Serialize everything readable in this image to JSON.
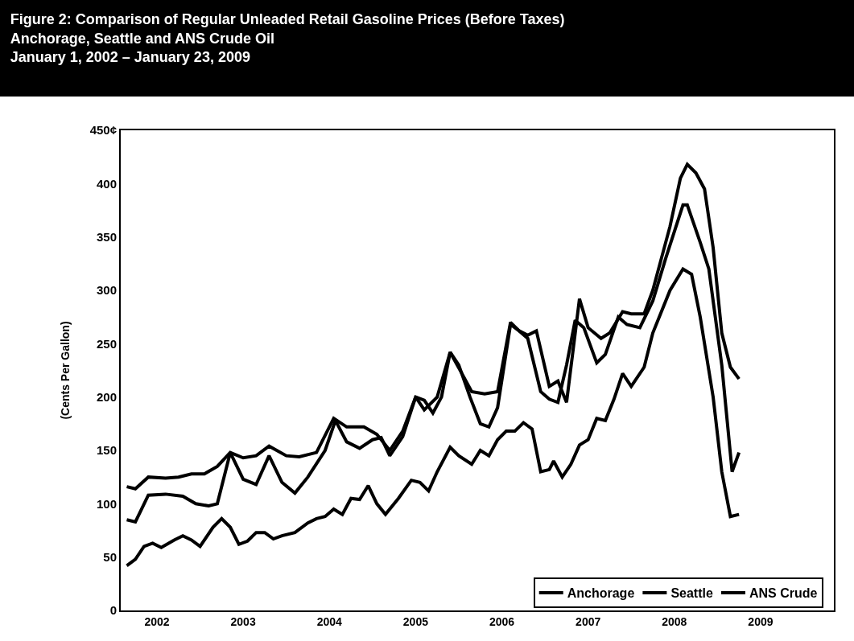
{
  "chart_data": {
    "type": "line",
    "title": "Figure 2: Comparison of Regular Unleaded Retail Gasoline Prices (Before Taxes)\nAnchorage, Seattle and ANS Crude Oil\nJanuary 1, 2002 – January 23, 2009",
    "ylabel": "(Cents Per Gallon)",
    "series": [
      {
        "name": "Anchorage",
        "color": "#000000",
        "x": [
          2002.0,
          2002.1,
          2002.25,
          2002.45,
          2002.65,
          2002.8,
          2002.95,
          2003.05,
          2003.2,
          2003.35,
          2003.5,
          2003.65,
          2003.8,
          2003.95,
          2004.1,
          2004.3,
          2004.42,
          2004.55,
          2004.7,
          2004.85,
          2004.95,
          2005.05,
          2005.2,
          2005.35,
          2005.45,
          2005.55,
          2005.65,
          2005.75,
          2005.85,
          2005.98,
          2006.1,
          2006.2,
          2006.3,
          2006.45,
          2006.55,
          2006.65,
          2006.8,
          2006.9,
          2007.0,
          2007.1,
          2007.2,
          2007.3,
          2007.45,
          2007.55,
          2007.7,
          2007.8,
          2007.95,
          2008.1,
          2008.25,
          2008.45,
          2008.5,
          2008.65,
          2008.75,
          2008.9,
          2009.02,
          2009.1
        ],
        "values": [
          85,
          83,
          108,
          109,
          107,
          100,
          98,
          100,
          148,
          123,
          118,
          145,
          120,
          110,
          125,
          150,
          178,
          158,
          152,
          160,
          162,
          145,
          163,
          200,
          197,
          185,
          200,
          242,
          230,
          200,
          175,
          172,
          190,
          268,
          262,
          255,
          205,
          198,
          195,
          230,
          272,
          265,
          232,
          240,
          275,
          268,
          265,
          290,
          330,
          380,
          380,
          345,
          320,
          230,
          130,
          148
        ]
      },
      {
        "name": "Seattle",
        "color": "#000000",
        "x": [
          2002.0,
          2002.1,
          2002.25,
          2002.45,
          2002.6,
          2002.75,
          2002.9,
          2003.05,
          2003.2,
          2003.35,
          2003.5,
          2003.65,
          2003.85,
          2004.0,
          2004.2,
          2004.4,
          2004.55,
          2004.75,
          2004.9,
          2005.05,
          2005.2,
          2005.35,
          2005.45,
          2005.6,
          2005.75,
          2005.9,
          2006.0,
          2006.15,
          2006.3,
          2006.45,
          2006.55,
          2006.65,
          2006.75,
          2006.9,
          2007.0,
          2007.1,
          2007.25,
          2007.35,
          2007.5,
          2007.6,
          2007.75,
          2007.85,
          2008.0,
          2008.1,
          2008.3,
          2008.42,
          2008.5,
          2008.6,
          2008.7,
          2008.8,
          2008.9,
          2009.0,
          2009.1
        ],
        "values": [
          116,
          114,
          125,
          124,
          125,
          128,
          128,
          135,
          148,
          143,
          145,
          154,
          145,
          144,
          148,
          180,
          172,
          172,
          165,
          150,
          168,
          200,
          188,
          200,
          242,
          220,
          205,
          203,
          205,
          270,
          262,
          258,
          262,
          210,
          215,
          195,
          292,
          265,
          255,
          260,
          280,
          278,
          278,
          300,
          360,
          405,
          418,
          410,
          395,
          340,
          260,
          228,
          217
        ]
      },
      {
        "name": "ANS Crude",
        "color": "#000000",
        "x": [
          2002.0,
          2002.1,
          2002.2,
          2002.3,
          2002.4,
          2002.55,
          2002.65,
          2002.75,
          2002.85,
          2003.0,
          2003.1,
          2003.2,
          2003.3,
          2003.4,
          2003.5,
          2003.6,
          2003.7,
          2003.8,
          2003.95,
          2004.1,
          2004.2,
          2004.3,
          2004.4,
          2004.5,
          2004.6,
          2004.7,
          2004.8,
          2004.9,
          2005.0,
          2005.15,
          2005.3,
          2005.4,
          2005.5,
          2005.6,
          2005.75,
          2005.85,
          2006.0,
          2006.1,
          2006.2,
          2006.3,
          2006.4,
          2006.5,
          2006.6,
          2006.7,
          2006.8,
          2006.9,
          2006.95,
          2007.05,
          2007.15,
          2007.25,
          2007.35,
          2007.45,
          2007.55,
          2007.65,
          2007.75,
          2007.85,
          2008.0,
          2008.1,
          2008.3,
          2008.45,
          2008.55,
          2008.65,
          2008.8,
          2008.9,
          2009.0,
          2009.1
        ],
        "values": [
          42,
          48,
          60,
          63,
          59,
          66,
          70,
          66,
          60,
          78,
          86,
          78,
          62,
          65,
          73,
          73,
          67,
          70,
          73,
          82,
          86,
          88,
          95,
          90,
          105,
          104,
          117,
          100,
          90,
          105,
          122,
          120,
          112,
          130,
          153,
          145,
          137,
          150,
          145,
          160,
          168,
          168,
          176,
          170,
          130,
          132,
          140,
          125,
          137,
          155,
          160,
          180,
          178,
          198,
          222,
          210,
          228,
          260,
          300,
          320,
          315,
          275,
          200,
          130,
          88,
          90
        ]
      }
    ],
    "xlim": [
      2001.93,
      2010.2
    ],
    "xticks": [
      {
        "value": 2002.35,
        "label": "2002"
      },
      {
        "value": 2003.35,
        "label": "2003"
      },
      {
        "value": 2004.35,
        "label": "2004"
      },
      {
        "value": 2005.35,
        "label": "2005"
      },
      {
        "value": 2006.35,
        "label": "2006"
      },
      {
        "value": 2007.35,
        "label": "2007"
      },
      {
        "value": 2008.35,
        "label": "2008"
      },
      {
        "value": 2009.35,
        "label": "2009"
      }
    ],
    "ylim": [
      0,
      450
    ],
    "yticks": [
      0,
      50,
      100,
      150,
      200,
      250,
      300,
      350,
      400,
      {
        "value": 450,
        "label": "450¢"
      }
    ],
    "grid": false,
    "legend": "bottom right",
    "marker": "none",
    "line_style": "solid"
  }
}
